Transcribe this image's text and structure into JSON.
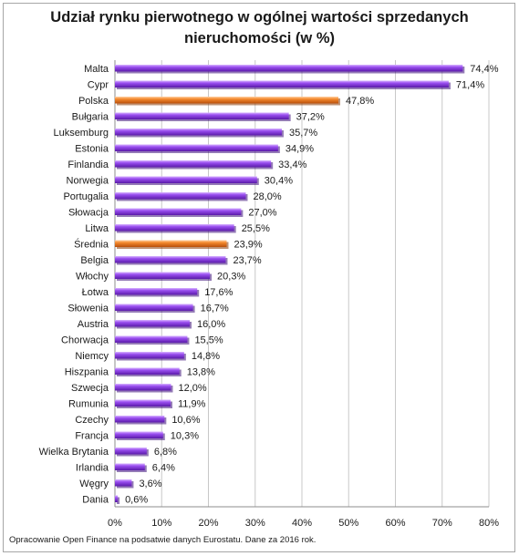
{
  "title_line1": "Udział rynku pierwotnego w ogólnej wartości sprzedanych",
  "title_line2": "nieruchomości (w %)",
  "source_note": "Opracowanie Open Finance na podsatwie danych Eurostatu. Dane za 2016 rok.",
  "chart_data": {
    "type": "bar",
    "orientation": "horizontal",
    "title": "Udział rynku pierwotnego w ogólnej wartości sprzedanych nieruchomości (w %)",
    "xlim": [
      0,
      80
    ],
    "x_ticks": [
      0,
      10,
      20,
      30,
      40,
      50,
      60,
      70,
      80
    ],
    "x_tick_labels": [
      "0%",
      "10%",
      "20%",
      "30%",
      "40%",
      "50%",
      "60%",
      "70%",
      "80%"
    ],
    "grid": "vertical",
    "legend": "none",
    "colors": {
      "default": "#7b2fd6",
      "highlight": "#f07b1f",
      "grid": "#c8c8c8"
    },
    "categories": [
      "Malta",
      "Cypr",
      "Polska",
      "Bułgaria",
      "Luksemburg",
      "Estonia",
      "Finlandia",
      "Norwegia",
      "Portugalia",
      "Słowacja",
      "Litwa",
      "Średnia",
      "Belgia",
      "Włochy",
      "Łotwa",
      "Słowenia",
      "Austria",
      "Chorwacja",
      "Niemcy",
      "Hiszpania",
      "Szwecja",
      "Rumunia",
      "Czechy",
      "Francja",
      "Wielka Brytania",
      "Irlandia",
      "Węgry",
      "Dania"
    ],
    "values": [
      74.4,
      71.4,
      47.8,
      37.2,
      35.7,
      34.9,
      33.4,
      30.4,
      28.0,
      27.0,
      25.5,
      23.9,
      23.7,
      20.3,
      17.6,
      16.7,
      16.0,
      15.5,
      14.8,
      13.8,
      12.0,
      11.9,
      10.6,
      10.3,
      6.8,
      6.4,
      3.6,
      0.6
    ],
    "value_labels": [
      "74,4%",
      "71,4%",
      "47,8%",
      "37,2%",
      "35,7%",
      "34,9%",
      "33,4%",
      "30,4%",
      "28,0%",
      "27,0%",
      "25,5%",
      "23,9%",
      "23,7%",
      "20,3%",
      "17,6%",
      "16,7%",
      "16,0%",
      "15,5%",
      "14,8%",
      "13,8%",
      "12,0%",
      "11,9%",
      "10,6%",
      "10,3%",
      "6,8%",
      "6,4%",
      "3,6%",
      "0,6%"
    ],
    "highlighted": [
      "Polska",
      "Średnia"
    ]
  }
}
